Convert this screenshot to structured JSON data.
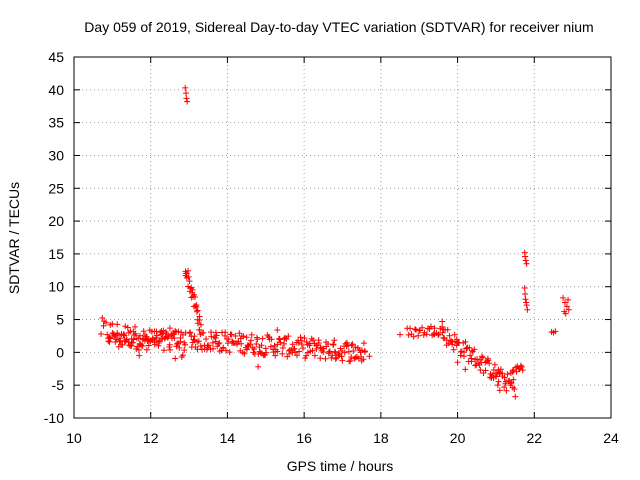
{
  "chart_data": {
    "type": "scatter",
    "title": "Day 059 of 2019, Sidereal Day-to-day VTEC variation (SDTVAR) for receiver nium",
    "xlabel": "GPS time / hours",
    "ylabel": "SDTVAR / TECUs",
    "xlim": [
      10,
      24
    ],
    "ylim": [
      -10,
      45
    ],
    "xticks": [
      "10",
      "12",
      "14",
      "16",
      "18",
      "20",
      "22",
      "24"
    ],
    "yticks": [
      "-10",
      "-5",
      "0",
      "5",
      "10",
      "15",
      "20",
      "25",
      "30",
      "35",
      "40",
      "45"
    ],
    "grid": true,
    "marker": "+",
    "color": "#ff0000",
    "series": [
      {
        "name": "SDTVAR",
        "segments": [
          {
            "x0": 10.7,
            "x1": 12.9,
            "y": [
              3.5,
              0.5
            ],
            "spread": 1.8,
            "count": 70
          },
          {
            "x0": 10.9,
            "x1": 12.9,
            "y": [
              2.0,
              2.2
            ],
            "spread": 1.2,
            "count": 60
          },
          {
            "x0": 12.9,
            "x1": 13.3,
            "y": [
              13.0,
              4.0
            ],
            "spread": 1.2,
            "count": 30
          },
          {
            "x0": 13.0,
            "x1": 17.6,
            "y": [
              2.0,
              0.0
            ],
            "spread": 1.6,
            "count": 210
          },
          {
            "x0": 18.7,
            "x1": 19.6,
            "y": [
              3.0,
              3.5
            ],
            "spread": 0.8,
            "count": 25
          },
          {
            "x0": 19.6,
            "x1": 21.5,
            "y": [
              3.0,
              -5.5
            ],
            "spread": 1.4,
            "count": 90
          },
          {
            "x0": 21.4,
            "x1": 21.7,
            "y": [
              -3.0,
              -2.2
            ],
            "spread": 0.6,
            "count": 12
          }
        ],
        "points": [
          [
            12.9,
            40.3
          ],
          [
            12.92,
            39.5
          ],
          [
            12.93,
            38.7
          ],
          [
            12.95,
            38.2
          ],
          [
            12.5,
            3.7
          ],
          [
            12.3,
            2.1
          ],
          [
            11.9,
            0.4
          ],
          [
            11.5,
            1.0
          ],
          [
            11.7,
            -0.5
          ],
          [
            11.3,
            2.8
          ],
          [
            12.1,
            3.2
          ],
          [
            13.7,
            3.0
          ],
          [
            14.5,
            2.3
          ],
          [
            15.3,
            3.4
          ],
          [
            14.8,
            -2.2
          ],
          [
            14.9,
            -0.2
          ],
          [
            16.8,
            0.1
          ],
          [
            17.5,
            -1.3
          ],
          [
            17.7,
            -0.6
          ],
          [
            18.5,
            2.7
          ],
          [
            19.6,
            4.7
          ],
          [
            19.4,
            3.7
          ],
          [
            20.0,
            -1.5
          ],
          [
            20.2,
            -2.6
          ],
          [
            21.0,
            -3.2
          ],
          [
            21.1,
            -5.8
          ],
          [
            21.05,
            -5.0
          ],
          [
            21.75,
            15.2
          ],
          [
            21.76,
            14.6
          ],
          [
            21.78,
            14.0
          ],
          [
            21.8,
            13.5
          ],
          [
            21.75,
            9.8
          ],
          [
            21.76,
            8.9
          ],
          [
            21.77,
            8.1
          ],
          [
            21.79,
            7.6
          ],
          [
            21.8,
            7.2
          ],
          [
            21.82,
            6.5
          ],
          [
            22.45,
            3.1
          ],
          [
            22.5,
            3.0
          ],
          [
            22.55,
            3.2
          ],
          [
            22.75,
            8.3
          ],
          [
            22.8,
            7.6
          ],
          [
            22.85,
            7.0
          ],
          [
            22.9,
            6.5
          ],
          [
            22.78,
            6.2
          ],
          [
            22.88,
            8.0
          ],
          [
            22.82,
            5.9
          ]
        ]
      }
    ]
  }
}
